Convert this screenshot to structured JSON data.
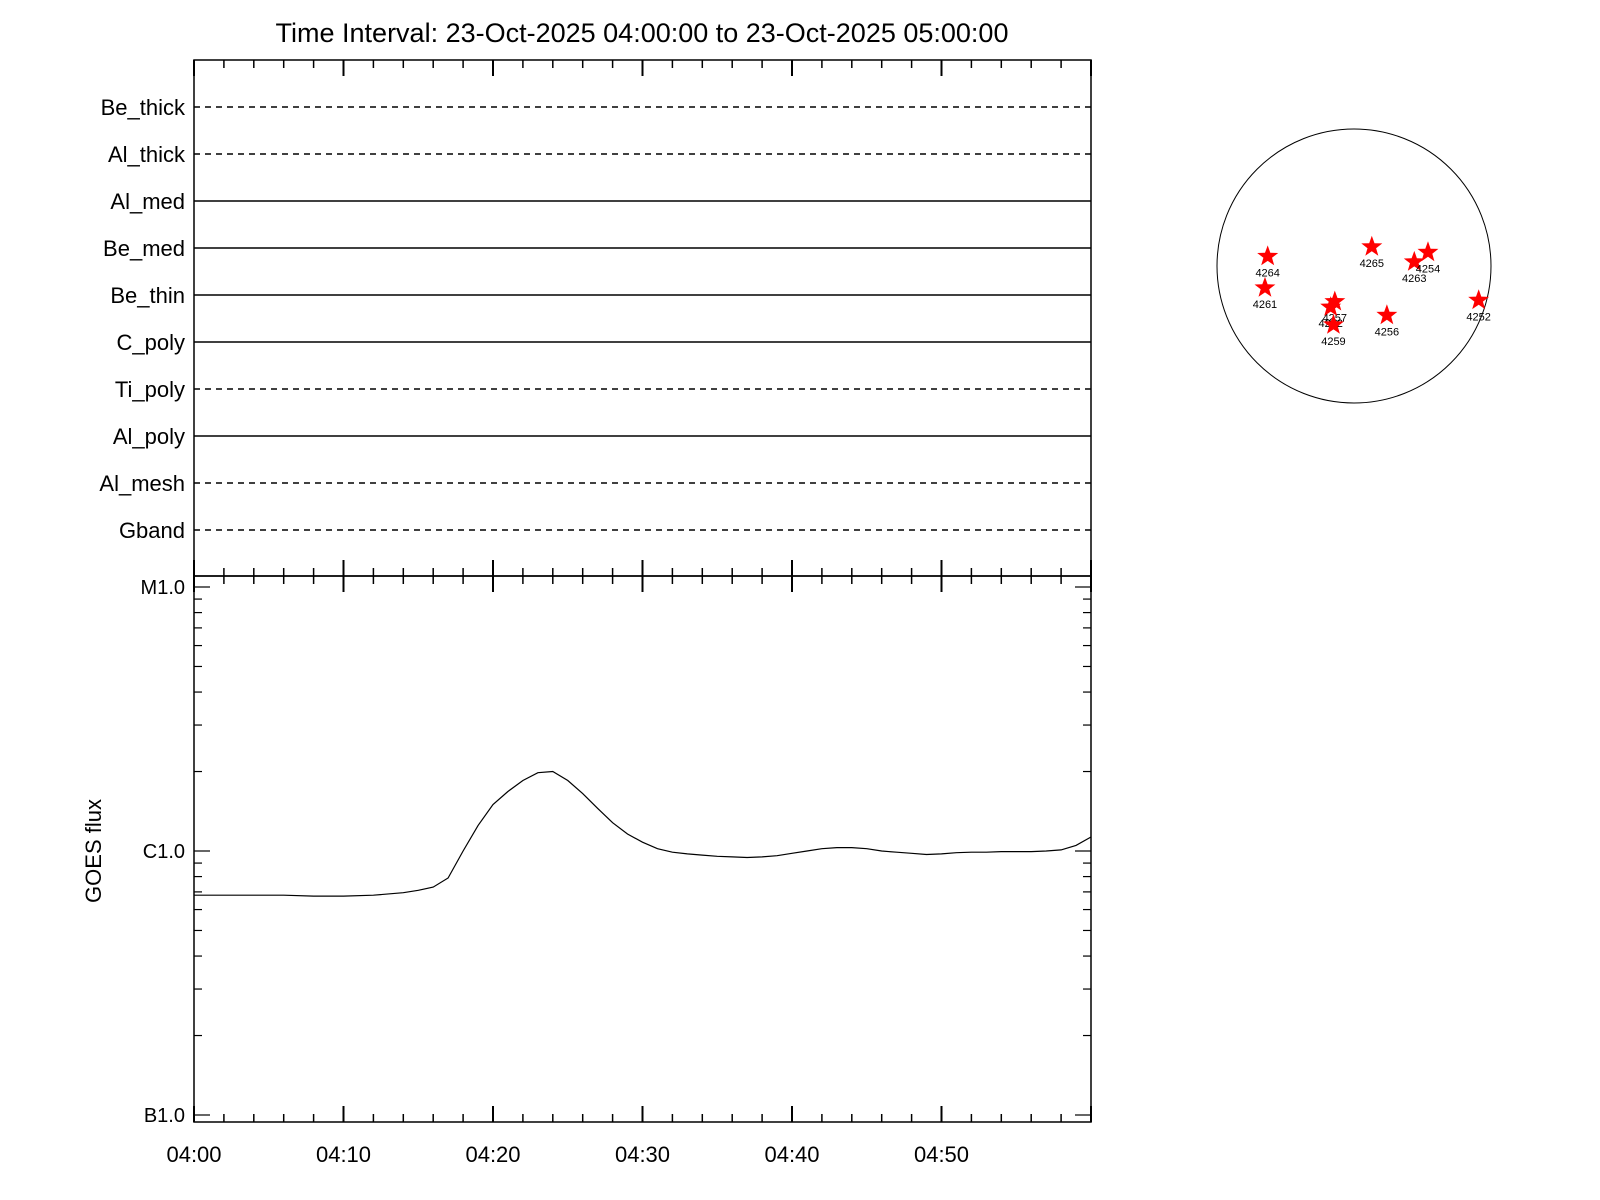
{
  "chart_data": [
    {
      "type": "timeline",
      "title": "Time Interval: 23-Oct-2025 04:00:00 to 23-Oct-2025 05:00:00",
      "channels": [
        {
          "name": "Be_thick",
          "style": "dashed"
        },
        {
          "name": "Al_thick",
          "style": "dashed"
        },
        {
          "name": "Al_med",
          "style": "solid"
        },
        {
          "name": "Be_med",
          "style": "solid"
        },
        {
          "name": "Be_thin",
          "style": "solid"
        },
        {
          "name": "C_poly",
          "style": "solid"
        },
        {
          "name": "Ti_poly",
          "style": "dashed"
        },
        {
          "name": "Al_poly",
          "style": "solid"
        },
        {
          "name": "Al_mesh",
          "style": "dashed"
        },
        {
          "name": "Gband",
          "style": "dashed"
        }
      ]
    },
    {
      "type": "line",
      "ylabel": "GOES flux",
      "yscale": "log",
      "ylim": [
        1e-07,
        1e-05
      ],
      "yticks": [
        {
          "value": 1e-07,
          "label": "B1.0"
        },
        {
          "value": 1e-06,
          "label": "C1.0"
        },
        {
          "value": 1e-05,
          "label": "M1.0"
        }
      ],
      "xlim": [
        "04:00",
        "05:00"
      ],
      "xticks": [
        "04:00",
        "04:10",
        "04:20",
        "04:30",
        "04:40",
        "04:50"
      ],
      "series": [
        {
          "x": [
            "04:00",
            "04:02",
            "04:04",
            "04:06",
            "04:08",
            "04:10",
            "04:12",
            "04:14",
            "04:15",
            "04:16",
            "04:17",
            "04:18",
            "04:19",
            "04:20",
            "04:21",
            "04:22",
            "04:23",
            "04:24",
            "04:25",
            "04:26",
            "04:27",
            "04:28",
            "04:29",
            "04:30",
            "04:31",
            "04:32",
            "04:33",
            "04:34",
            "04:35",
            "04:36",
            "04:37",
            "04:38",
            "04:39",
            "04:40",
            "04:41",
            "04:42",
            "04:43",
            "04:44",
            "04:45",
            "04:46",
            "04:47",
            "04:48",
            "04:49",
            "04:50",
            "04:51",
            "04:52",
            "04:53",
            "04:54",
            "04:55",
            "04:56",
            "04:57",
            "04:58",
            "04:59",
            "05:00"
          ],
          "values": [
            6.8e-07,
            6.8e-07,
            6.8e-07,
            6.8e-07,
            6.75e-07,
            6.75e-07,
            6.8e-07,
            6.95e-07,
            7.1e-07,
            7.3e-07,
            7.9e-07,
            1e-06,
            1.25e-06,
            1.5e-06,
            1.68e-06,
            1.85e-06,
            1.98e-06,
            2e-06,
            1.85e-06,
            1.65e-06,
            1.45e-06,
            1.28e-06,
            1.16e-06,
            1.08e-06,
            1.02e-06,
            9.9e-07,
            9.75e-07,
            9.65e-07,
            9.55e-07,
            9.5e-07,
            9.45e-07,
            9.5e-07,
            9.6e-07,
            9.8e-07,
            1e-06,
            1.02e-06,
            1.03e-06,
            1.03e-06,
            1.02e-06,
            1e-06,
            9.9e-07,
            9.8e-07,
            9.7e-07,
            9.75e-07,
            9.85e-07,
            9.9e-07,
            9.9e-07,
            9.95e-07,
            9.95e-07,
            9.95e-07,
            1e-06,
            1.01e-06,
            1.05e-06,
            1.13e-06
          ]
        }
      ]
    },
    {
      "type": "scatter",
      "subtype": "solar-disk",
      "points": [
        {
          "label": "4264",
          "x": -0.63,
          "y": 0.07
        },
        {
          "label": "4265",
          "x": 0.13,
          "y": 0.14
        },
        {
          "label": "4263",
          "x": 0.44,
          "y": 0.03
        },
        {
          "label": "4254",
          "x": 0.54,
          "y": 0.1
        },
        {
          "label": "4261",
          "x": -0.65,
          "y": -0.16
        },
        {
          "label": "4257",
          "x": -0.14,
          "y": -0.26
        },
        {
          "label": "4262",
          "x": -0.17,
          "y": -0.3
        },
        {
          "label": "4259",
          "x": -0.15,
          "y": -0.43
        },
        {
          "label": "4256",
          "x": 0.24,
          "y": -0.36
        },
        {
          "label": "4252",
          "x": 0.91,
          "y": -0.25
        }
      ]
    }
  ],
  "colors": {
    "axes": "#000000",
    "curve": "#000000",
    "marker": "#ff0000"
  }
}
